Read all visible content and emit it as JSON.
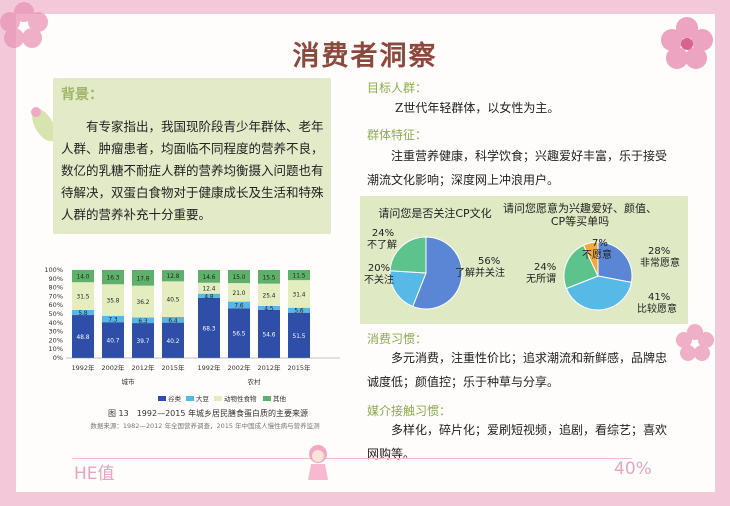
{
  "title": "消费者洞察",
  "background": {
    "heading": "背景：",
    "text": "有专家指出，我国现阶段青少年群体、老年人群、肿瘤患者，均面临不同程度的营养不良，数亿的乳糖不耐症人群的营养均衡摄入问题也有待解决，双蛋白食物对于健康成长及生活和特殊人群的营养补充十分重要。"
  },
  "target": {
    "heading": "目标人群：",
    "text": "Z世代年轻群体，以女性为主。"
  },
  "traits": {
    "heading": "群体特征：",
    "text": "注重营养健康，科学饮食；兴趣爱好丰富，乐于接受潮流文化影响；深度网上冲浪用户。"
  },
  "habits": {
    "heading": "消费习惯：",
    "text": "多元消费，注重性价比；追求潮流和新鲜感，品牌忠诚度低；颜值控；乐于种草与分享。"
  },
  "media": {
    "heading": "媒介接触习惯：",
    "text": "多样化，碎片化；爱刷短视频，追剧，看综艺；喜欢网购等。"
  },
  "footer": {
    "left": "HE值",
    "right": "40%"
  },
  "colors": {
    "pie_blue": "#5b86d6",
    "pie_lightblue": "#57b9e6",
    "pie_green": "#5cc38c",
    "pie_orange": "#f2a93b",
    "bar_dark": "#2e4ea8",
    "bar_mid": "#58b8e3",
    "bar_light": "#e3edc0",
    "bar_green": "#5eb06a"
  },
  "chart_data": [
    {
      "type": "bar",
      "caption": "图 13　1992—2015 年城乡居民膳食蛋白质的主要来源",
      "source": "数据来源：1982—2012 年全国营养调查，2015 年中国成人慢性病与营养监测",
      "yticks": [
        "0%",
        "10%",
        "20%",
        "30%",
        "40%",
        "50%",
        "60%",
        "70%",
        "80%",
        "90%",
        "100%"
      ],
      "ylim": [
        0,
        100
      ],
      "categories": [
        "1992年",
        "2002年",
        "2012年",
        "2015年",
        "1992年",
        "2002年",
        "2012年",
        "2015年"
      ],
      "groups": [
        "城市",
        "农村"
      ],
      "series": [
        {
          "name": "谷类",
          "values": [
            48.8,
            40.7,
            39.7,
            40.2,
            68.3,
            56.5,
            54.6,
            51.5
          ]
        },
        {
          "name": "大豆",
          "values": [
            5.8,
            7.3,
            6.3,
            6.4,
            4.8,
            7.6,
            4.5,
            5.6
          ]
        },
        {
          "name": "动物性食物",
          "values": [
            31.5,
            35.8,
            36.2,
            40.5,
            12.4,
            21.0,
            25.4,
            31.4
          ]
        },
        {
          "name": "其他",
          "values": [
            14.0,
            16.3,
            17.8,
            12.8,
            14.6,
            15.0,
            15.5,
            11.5
          ]
        }
      ]
    },
    {
      "type": "pie",
      "title": "请问您是否关注CP文化",
      "slices": [
        {
          "label": "了解并关注",
          "pct": "56%",
          "value": 56
        },
        {
          "label": "不关注",
          "pct": "20%",
          "value": 20
        },
        {
          "label": "不了解",
          "pct": "24%",
          "value": 24
        }
      ]
    },
    {
      "type": "pie",
      "title": "请问您愿意为兴趣爱好、颜值、CP等买单吗",
      "slices": [
        {
          "label": "非常愿意",
          "pct": "28%",
          "value": 28
        },
        {
          "label": "比较愿意",
          "pct": "41%",
          "value": 41
        },
        {
          "label": "无所谓",
          "pct": "24%",
          "value": 24
        },
        {
          "label": "不愿意",
          "pct": "7%",
          "value": 7
        }
      ]
    }
  ]
}
